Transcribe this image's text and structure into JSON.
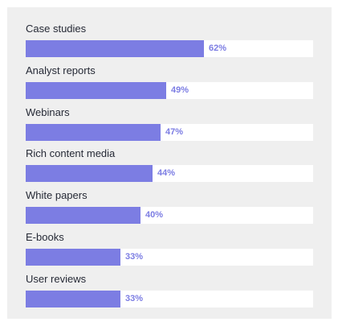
{
  "chart_data": {
    "type": "bar",
    "orientation": "horizontal",
    "categories": [
      "Case studies",
      "Analyst reports",
      "Webinars",
      "Rich content media",
      "White papers",
      "E-books",
      "User reviews"
    ],
    "values": [
      62,
      49,
      47,
      44,
      40,
      33,
      33
    ],
    "value_labels": [
      "62%",
      "49%",
      "47%",
      "44%",
      "40%",
      "33%",
      "33%"
    ],
    "bar_color": "#7c7de3",
    "track_color": "#ffffff",
    "background_color": "#efefef",
    "label_color": "#262a36",
    "xlim": [
      0,
      100
    ],
    "grid": false
  }
}
